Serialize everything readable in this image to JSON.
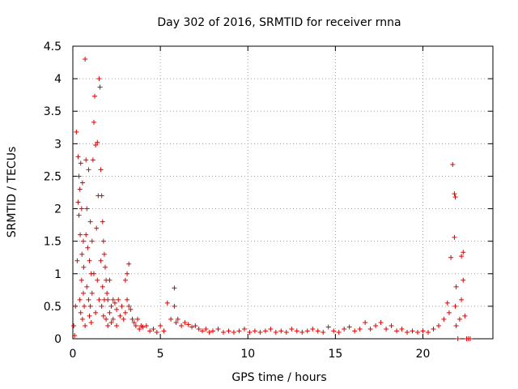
{
  "chart_data": {
    "type": "scatter",
    "title": "Day 302 of 2016, SRMTID for receiver rnna",
    "xlabel": "GPS time / hours",
    "ylabel": "SRMTID / TECUs",
    "xlim": [
      0,
      24
    ],
    "ylim": [
      0,
      4.5
    ],
    "x_ticks": [
      0,
      5,
      10,
      15,
      20
    ],
    "x_tick_labels": [
      "0",
      "5",
      "10",
      "15",
      "20"
    ],
    "y_ticks": [
      0,
      0.5,
      1,
      1.5,
      2,
      2.5,
      3,
      3.5,
      4,
      4.5
    ],
    "y_tick_labels": [
      "0",
      "0.5",
      "1",
      "1.5",
      "2",
      "2.5",
      "3",
      "3.5",
      "4",
      "4.5"
    ],
    "grid": true,
    "marker": "+",
    "color": "#e00000",
    "series": [
      {
        "name": "SRMTID",
        "x": [
          0.05,
          0.1,
          0.15,
          0.2,
          0.25,
          0.3,
          0.3,
          0.35,
          0.35,
          0.4,
          0.4,
          0.42,
          0.45,
          0.45,
          0.5,
          0.5,
          0.52,
          0.55,
          0.55,
          0.6,
          0.6,
          0.62,
          0.65,
          0.7,
          0.7,
          0.75,
          0.75,
          0.8,
          0.8,
          0.85,
          0.9,
          0.9,
          0.95,
          0.95,
          1.0,
          1.0,
          1.05,
          1.05,
          1.1,
          1.1,
          1.15,
          1.2,
          1.2,
          1.25,
          1.3,
          1.3,
          1.35,
          1.4,
          1.4,
          1.45,
          1.5,
          1.5,
          1.55,
          1.6,
          1.6,
          1.65,
          1.65,
          1.7,
          1.7,
          1.75,
          1.75,
          1.8,
          1.8,
          1.85,
          1.9,
          1.9,
          1.95,
          2.0,
          2.0,
          2.1,
          2.1,
          2.2,
          2.2,
          2.3,
          2.3,
          2.4,
          2.5,
          2.5,
          2.6,
          2.7,
          2.8,
          2.9,
          3.0,
          3.0,
          3.1,
          3.1,
          3.2,
          3.2,
          3.3,
          3.4,
          3.5,
          3.6,
          3.7,
          3.8,
          3.9,
          4.0,
          4.2,
          4.4,
          4.6,
          4.8,
          5.0,
          5.2,
          5.4,
          5.6,
          5.8,
          5.8,
          5.9,
          6.0,
          6.2,
          6.4,
          6.6,
          6.8,
          7.0,
          7.2,
          7.4,
          7.6,
          7.8,
          8.0,
          8.3,
          8.6,
          8.9,
          9.2,
          9.5,
          9.8,
          10.1,
          10.4,
          10.7,
          11.0,
          11.3,
          11.6,
          11.9,
          12.2,
          12.5,
          12.8,
          13.1,
          13.4,
          13.7,
          14.0,
          14.3,
          14.6,
          14.9,
          15.2,
          15.5,
          15.8,
          16.1,
          16.4,
          16.7,
          17.0,
          17.3,
          17.6,
          17.9,
          18.2,
          18.5,
          18.8,
          19.1,
          19.4,
          19.7,
          20.0,
          20.3,
          20.6,
          20.9,
          21.2,
          21.4,
          21.5,
          21.6,
          21.7,
          21.8,
          21.8,
          21.85,
          21.85,
          21.9,
          21.9,
          22.0,
          22.1,
          22.2,
          22.2,
          22.3,
          22.3,
          22.4,
          22.5,
          22.6,
          22.7
        ],
        "y": [
          0.2,
          0.05,
          0.5,
          3.18,
          1.2,
          2.8,
          2.1,
          2.5,
          1.9,
          2.3,
          0.6,
          1.6,
          2.7,
          0.4,
          2.0,
          0.9,
          1.3,
          2.4,
          0.3,
          1.5,
          0.7,
          1.1,
          0.5,
          4.3,
          0.2,
          2.75,
          1.6,
          2.0,
          0.8,
          1.4,
          2.6,
          0.6,
          1.2,
          0.35,
          1.8,
          0.5,
          1.0,
          0.25,
          1.5,
          0.7,
          2.75,
          3.33,
          1.0,
          3.73,
          2.98,
          0.4,
          1.7,
          3.02,
          0.9,
          2.2,
          4.0,
          0.6,
          3.87,
          2.6,
          1.2,
          2.2,
          0.5,
          1.8,
          0.8,
          1.5,
          0.35,
          1.3,
          0.6,
          1.1,
          0.9,
          0.3,
          0.7,
          0.6,
          0.2,
          0.9,
          0.4,
          0.5,
          0.25,
          0.6,
          0.3,
          0.55,
          0.45,
          0.2,
          0.6,
          0.35,
          0.5,
          0.3,
          0.9,
          0.4,
          1.0,
          0.6,
          1.15,
          0.5,
          0.45,
          0.3,
          0.25,
          0.2,
          0.3,
          0.15,
          0.2,
          0.18,
          0.2,
          0.12,
          0.15,
          0.1,
          0.2,
          0.12,
          0.55,
          0.3,
          0.78,
          0.5,
          0.25,
          0.3,
          0.2,
          0.25,
          0.22,
          0.18,
          0.2,
          0.15,
          0.12,
          0.15,
          0.1,
          0.12,
          0.15,
          0.1,
          0.12,
          0.1,
          0.12,
          0.15,
          0.1,
          0.12,
          0.1,
          0.12,
          0.15,
          0.1,
          0.12,
          0.1,
          0.15,
          0.12,
          0.1,
          0.12,
          0.15,
          0.12,
          0.1,
          0.18,
          0.12,
          0.1,
          0.15,
          0.18,
          0.12,
          0.15,
          0.25,
          0.15,
          0.2,
          0.25,
          0.15,
          0.2,
          0.12,
          0.15,
          0.1,
          0.12,
          0.1,
          0.12,
          0.1,
          0.15,
          0.2,
          0.3,
          0.55,
          0.4,
          1.25,
          2.68,
          1.56,
          2.23,
          2.18,
          0.5,
          0.2,
          0.8,
          0.0,
          0.3,
          0.6,
          1.27,
          0.9,
          1.33,
          0.35,
          0.0,
          0.0,
          0.0
        ]
      }
    ]
  }
}
